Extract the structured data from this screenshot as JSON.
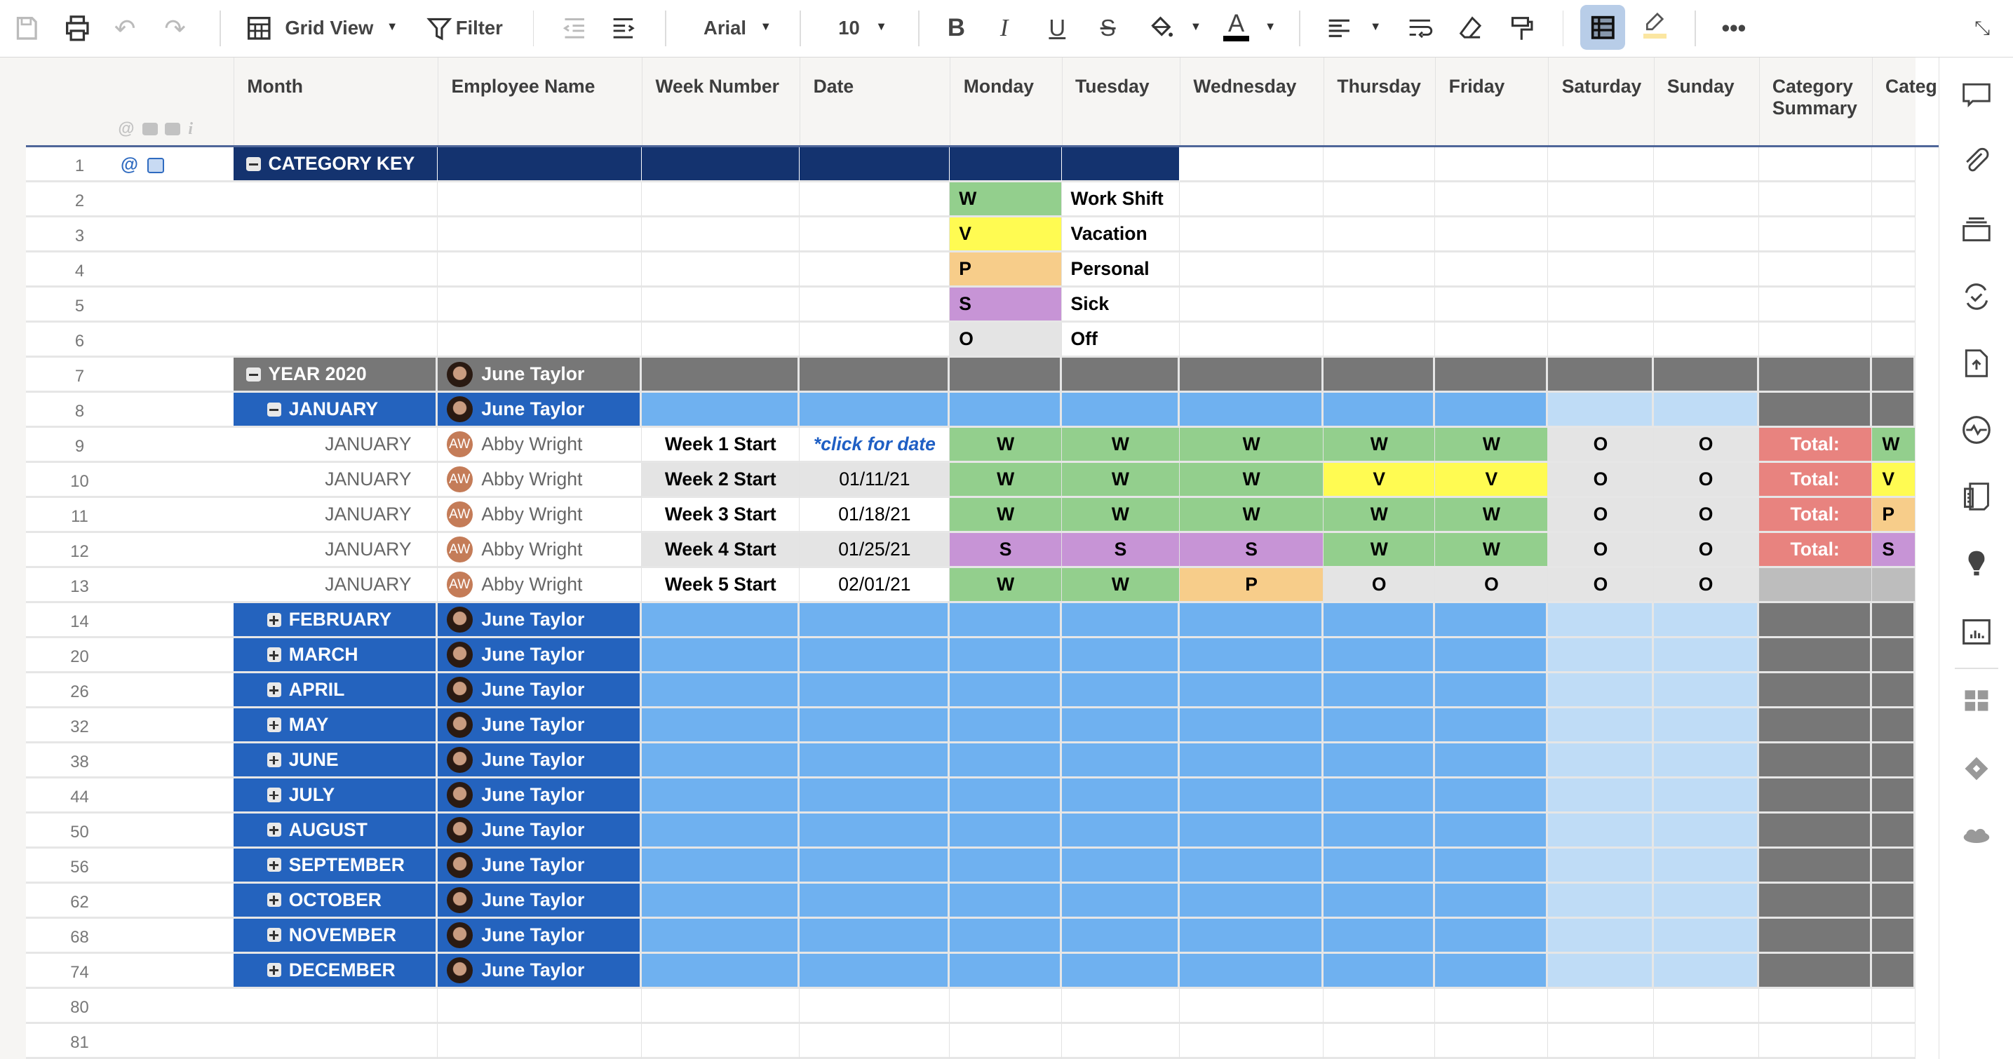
{
  "toolbar": {
    "view_label": "Grid View",
    "filter_label": "Filter",
    "font": "Arial",
    "font_size": "10"
  },
  "columns": [
    "Month",
    "Employee Name",
    "Week Number",
    "Date",
    "Monday",
    "Tuesday",
    "Wednesday",
    "Thursday",
    "Friday",
    "Saturday",
    "Sunday",
    "Category Summary",
    "Categ"
  ],
  "status_colors": {
    "W": "#93cf8d",
    "V": "#fffb52",
    "P": "#f7cd8a",
    "S": "#c794d6",
    "O": "#e4e4e4"
  },
  "rows": [
    {
      "num": "1",
      "type": "category-key",
      "label": "CATEGORY KEY"
    },
    {
      "num": "2",
      "type": "key",
      "code": "W",
      "meaning": "Work Shift"
    },
    {
      "num": "3",
      "type": "key",
      "code": "V",
      "meaning": "Vacation"
    },
    {
      "num": "4",
      "type": "key",
      "code": "P",
      "meaning": "Personal"
    },
    {
      "num": "5",
      "type": "key",
      "code": "S",
      "meaning": "Sick"
    },
    {
      "num": "6",
      "type": "key",
      "code": "O",
      "meaning": "Off"
    },
    {
      "num": "7",
      "type": "year",
      "label": "YEAR 2020",
      "assignee": "June Taylor",
      "expanded": true
    },
    {
      "num": "8",
      "type": "month",
      "label": "JANUARY",
      "assignee": "June Taylor",
      "expanded": true
    },
    {
      "num": "9",
      "type": "entry",
      "month": "JANUARY",
      "initials": "AW",
      "employee": "Abby Wright",
      "week": "Week 1 Start",
      "date": "*click for date",
      "days": [
        "W",
        "W",
        "W",
        "W",
        "W",
        "O",
        "O"
      ],
      "summary": "Total:",
      "category": "W"
    },
    {
      "num": "10",
      "type": "entry",
      "month": "JANUARY",
      "initials": "AW",
      "employee": "Abby Wright",
      "week": "Week 2 Start",
      "date": "01/11/21",
      "days": [
        "W",
        "W",
        "W",
        "V",
        "V",
        "O",
        "O"
      ],
      "summary": "Total:",
      "category": "V"
    },
    {
      "num": "11",
      "type": "entry",
      "month": "JANUARY",
      "initials": "AW",
      "employee": "Abby Wright",
      "week": "Week 3 Start",
      "date": "01/18/21",
      "days": [
        "W",
        "W",
        "W",
        "W",
        "W",
        "O",
        "O"
      ],
      "summary": "Total:",
      "category": "P"
    },
    {
      "num": "12",
      "type": "entry",
      "month": "JANUARY",
      "initials": "AW",
      "employee": "Abby Wright",
      "week": "Week 4 Start",
      "date": "01/25/21",
      "days": [
        "S",
        "S",
        "S",
        "W",
        "W",
        "O",
        "O"
      ],
      "summary": "Total:",
      "category": "S"
    },
    {
      "num": "13",
      "type": "entry",
      "month": "JANUARY",
      "initials": "AW",
      "employee": "Abby Wright",
      "week": "Week 5 Start",
      "date": "02/01/21",
      "days": [
        "W",
        "W",
        "P",
        "O",
        "O",
        "O",
        "O"
      ]
    },
    {
      "num": "14",
      "type": "month",
      "label": "FEBRUARY",
      "assignee": "June Taylor",
      "expanded": false
    },
    {
      "num": "20",
      "type": "month",
      "label": "MARCH",
      "assignee": "June Taylor",
      "expanded": false
    },
    {
      "num": "26",
      "type": "month",
      "label": "APRIL",
      "assignee": "June Taylor",
      "expanded": false
    },
    {
      "num": "32",
      "type": "month",
      "label": "MAY",
      "assignee": "June Taylor",
      "expanded": false
    },
    {
      "num": "38",
      "type": "month",
      "label": "JUNE",
      "assignee": "June Taylor",
      "expanded": false
    },
    {
      "num": "44",
      "type": "month",
      "label": "JULY",
      "assignee": "June Taylor",
      "expanded": false
    },
    {
      "num": "50",
      "type": "month",
      "label": "AUGUST",
      "assignee": "June Taylor",
      "expanded": false
    },
    {
      "num": "56",
      "type": "month",
      "label": "SEPTEMBER",
      "assignee": "June Taylor",
      "expanded": false
    },
    {
      "num": "62",
      "type": "month",
      "label": "OCTOBER",
      "assignee": "June Taylor",
      "expanded": false
    },
    {
      "num": "68",
      "type": "month",
      "label": "NOVEMBER",
      "assignee": "June Taylor",
      "expanded": false
    },
    {
      "num": "74",
      "type": "month",
      "label": "DECEMBER",
      "assignee": "June Taylor",
      "expanded": false
    },
    {
      "num": "80",
      "type": "empty"
    },
    {
      "num": "81",
      "type": "empty"
    }
  ]
}
